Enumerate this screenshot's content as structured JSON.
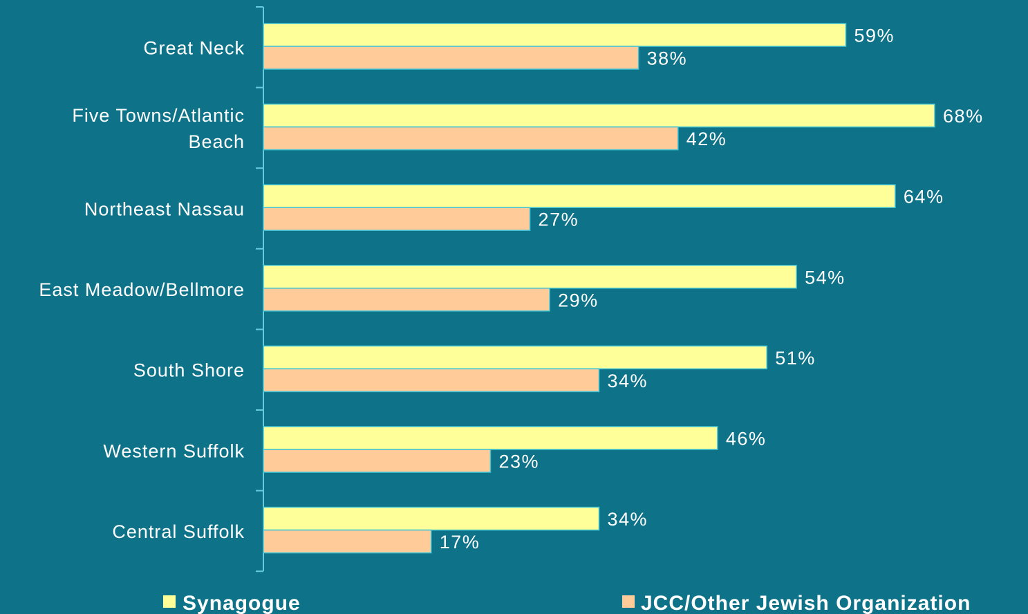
{
  "chart_data": {
    "type": "bar",
    "orientation": "horizontal",
    "categories": [
      [
        "Great Neck"
      ],
      [
        "Five Towns/Atlantic",
        "Beach"
      ],
      [
        "Northeast Nassau"
      ],
      [
        "East Meadow/Bellmore"
      ],
      [
        "South Shore"
      ],
      [
        "Western Suffolk"
      ],
      [
        "Central Suffolk"
      ]
    ],
    "series": [
      {
        "name": "Synagogue",
        "values": [
          59,
          68,
          64,
          54,
          51,
          46,
          34
        ],
        "color": "#ffff99"
      },
      {
        "name": "JCC/Other Jewish Organization",
        "values": [
          38,
          42,
          27,
          29,
          34,
          23,
          17
        ],
        "color": "#ffcc99"
      }
    ],
    "value_suffix": "%",
    "xlim": [
      0,
      75
    ],
    "grid": false,
    "legend": "bottom",
    "title": "",
    "xlabel": "",
    "ylabel": ""
  },
  "colors": {
    "background": "#0e7389",
    "axis": "#66ccdd",
    "bar_border": "#3fc3d6",
    "text": "#ffffff"
  }
}
